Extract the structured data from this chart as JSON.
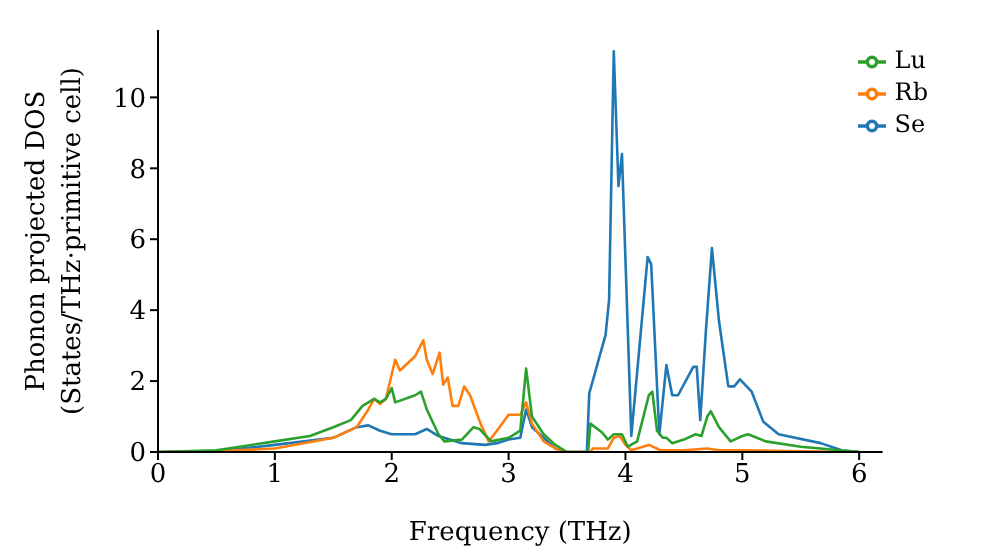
{
  "chart_data": {
    "type": "line",
    "xlabel": "Frequency (THz)",
    "ylabel": "Phonon projected DOS\n(States/THz·primitive cell)",
    "xlim": [
      0,
      6.2
    ],
    "xticks": [
      0,
      1,
      2,
      3,
      4,
      5,
      6
    ],
    "ylim": [
      0,
      11.9
    ],
    "yticks": [
      0,
      2,
      4,
      6,
      8,
      10
    ],
    "grid": false,
    "legend": "top right",
    "marker": "none",
    "line_style": "solid",
    "series": [
      {
        "name": "Se",
        "color": "#1f77b4",
        "x": [
          0,
          0.5,
          1,
          1.5,
          1.7,
          1.8,
          1.9,
          2.0,
          2.2,
          2.3,
          2.4,
          2.6,
          2.8,
          2.9,
          3.0,
          3.1,
          3.15,
          3.2,
          3.3,
          3.4,
          3.5,
          3.67,
          3.69,
          3.77,
          3.83,
          3.86,
          3.9,
          3.94,
          3.97,
          4.05,
          4.19,
          4.22,
          4.29,
          4.35,
          4.4,
          4.45,
          4.58,
          4.61,
          4.64,
          4.69,
          4.74,
          4.8,
          4.88,
          4.93,
          4.98,
          5.08,
          5.18,
          5.31,
          5.67,
          5.85,
          6.0
        ],
        "values": [
          0,
          0.02,
          0.2,
          0.4,
          0.7,
          0.75,
          0.6,
          0.5,
          0.5,
          0.65,
          0.45,
          0.25,
          0.2,
          0.25,
          0.35,
          0.4,
          1.2,
          0.7,
          0.4,
          0.1,
          0,
          0,
          1.65,
          2.6,
          3.3,
          4.3,
          11.3,
          7.5,
          8.4,
          0.45,
          5.5,
          5.3,
          0.5,
          2.45,
          1.6,
          1.6,
          2.4,
          2.4,
          0.9,
          3.5,
          5.75,
          3.7,
          1.85,
          1.85,
          2.05,
          1.7,
          0.85,
          0.5,
          0.25,
          0.05,
          0
        ]
      },
      {
        "name": "Rb",
        "color": "#ff7f0e",
        "x": [
          0,
          0.5,
          1,
          1.5,
          1.7,
          1.8,
          1.85,
          1.9,
          1.95,
          2.03,
          2.07,
          2.2,
          2.27,
          2.3,
          2.35,
          2.41,
          2.44,
          2.48,
          2.52,
          2.57,
          2.62,
          2.67,
          2.76,
          2.83,
          2.9,
          3.0,
          3.1,
          3.15,
          3.2,
          3.3,
          3.4,
          3.5,
          3.7,
          3.72,
          3.85,
          3.9,
          3.95,
          4.0,
          4.05,
          4.2,
          4.3,
          4.5,
          4.7,
          4.8,
          5.0,
          5.5,
          6.0
        ],
        "values": [
          0,
          0.02,
          0.1,
          0.4,
          0.7,
          1.2,
          1.5,
          1.35,
          1.5,
          2.6,
          2.3,
          2.7,
          3.15,
          2.6,
          2.2,
          2.8,
          1.9,
          2.1,
          1.3,
          1.3,
          1.85,
          1.6,
          0.8,
          0.3,
          0.6,
          1.05,
          1.05,
          1.4,
          0.8,
          0.3,
          0.1,
          0,
          0,
          0.1,
          0.1,
          0.4,
          0.45,
          0.2,
          0.05,
          0.2,
          0.05,
          0.05,
          0.1,
          0.05,
          0.05,
          0.02,
          0
        ]
      },
      {
        "name": "Lu",
        "color": "#2ca02c",
        "x": [
          0,
          0.5,
          1,
          1.3,
          1.5,
          1.65,
          1.75,
          1.85,
          1.9,
          1.95,
          2.0,
          2.03,
          2.2,
          2.25,
          2.3,
          2.4,
          2.45,
          2.6,
          2.7,
          2.75,
          2.85,
          3.0,
          3.1,
          3.15,
          3.2,
          3.3,
          3.4,
          3.5,
          3.68,
          3.7,
          3.8,
          3.85,
          3.9,
          3.97,
          4.02,
          4.1,
          4.2,
          4.23,
          4.27,
          4.32,
          4.35,
          4.4,
          4.5,
          4.6,
          4.65,
          4.7,
          4.73,
          4.8,
          4.9,
          5.0,
          5.05,
          5.2,
          5.5,
          6.0
        ],
        "values": [
          0,
          0.05,
          0.3,
          0.45,
          0.7,
          0.9,
          1.3,
          1.5,
          1.4,
          1.5,
          1.8,
          1.4,
          1.6,
          1.7,
          1.2,
          0.5,
          0.3,
          0.35,
          0.7,
          0.65,
          0.3,
          0.4,
          0.6,
          2.35,
          1.0,
          0.5,
          0.2,
          0,
          0,
          0.8,
          0.55,
          0.35,
          0.5,
          0.5,
          0.15,
          0.3,
          1.6,
          1.7,
          0.6,
          0.4,
          0.4,
          0.25,
          0.35,
          0.5,
          0.45,
          1.0,
          1.15,
          0.7,
          0.3,
          0.45,
          0.5,
          0.3,
          0.15,
          0
        ]
      }
    ]
  }
}
